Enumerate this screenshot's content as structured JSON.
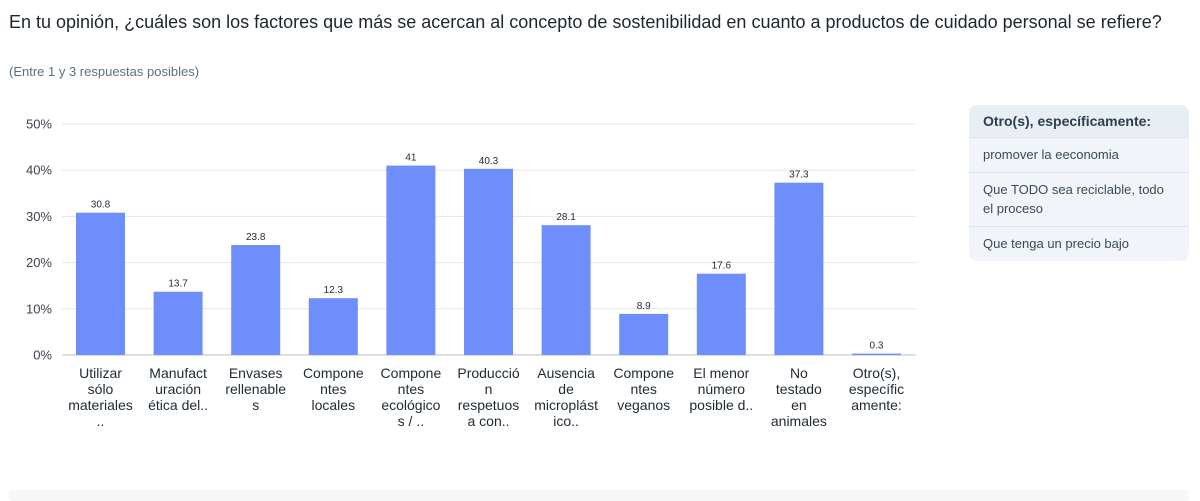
{
  "question": {
    "title": "En tu opinión, ¿cuáles son los factores que más se acercan al concepto de sostenibilidad en cuanto a productos de cuidado personal se refiere?",
    "hint": "(Entre 1 y 3 respuestas posibles)"
  },
  "chart_data": {
    "type": "bar",
    "title": "",
    "xlabel": "",
    "ylabel": "",
    "ylim": [
      0,
      50
    ],
    "y_ticks": [
      "0%",
      "10%",
      "20%",
      "30%",
      "40%",
      "50%"
    ],
    "y_tick_values": [
      0,
      10,
      20,
      30,
      40,
      50
    ],
    "grid": true,
    "color": "#6e8efb",
    "categories": [
      [
        "Utilizar",
        "sólo",
        "materiales",
        ".."
      ],
      [
        "Manufact",
        "uración",
        "ética del.."
      ],
      [
        "Envases",
        "rellenable",
        "s"
      ],
      [
        "Compone",
        "ntes",
        "locales"
      ],
      [
        "Compone",
        "ntes",
        "ecológico",
        "s / .."
      ],
      [
        "Producció",
        "n",
        "respetuos",
        "a con.."
      ],
      [
        "Ausencia",
        "de",
        "microplást",
        "ico.."
      ],
      [
        "Compone",
        "ntes",
        "veganos"
      ],
      [
        "El menor",
        "número",
        "posible d.."
      ],
      [
        "No",
        "testado",
        "en",
        "animales"
      ],
      [
        "Otro(s),",
        "específic",
        "amente:"
      ]
    ],
    "values": [
      30.8,
      13.7,
      23.8,
      12.3,
      41,
      40.3,
      28.1,
      8.9,
      17.6,
      37.3,
      0.3
    ],
    "value_labels": [
      "30.8",
      "13.7",
      "23.8",
      "12.3",
      "41",
      "40.3",
      "28.1",
      "8.9",
      "17.6",
      "37.3",
      "0.3"
    ]
  },
  "other_panel": {
    "header": "Otro(s), específicamente:",
    "items": [
      "promover la eeconomia",
      "Que TODO sea reciclable, todo el proceso",
      "Que tenga un precio bajo"
    ]
  }
}
